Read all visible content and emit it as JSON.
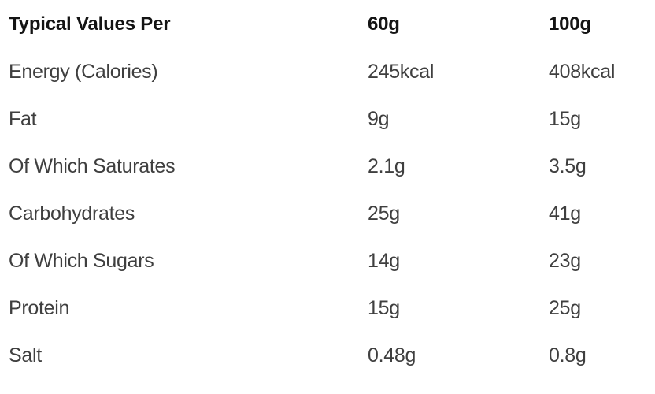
{
  "chart_data": {
    "type": "table",
    "title": "Typical Values Per",
    "columns": [
      "Typical Values Per",
      "60g",
      "100g"
    ],
    "rows": [
      [
        "Energy (Calories)",
        "245kcal",
        "408kcal"
      ],
      [
        "Fat",
        "9g",
        "15g"
      ],
      [
        "Of Which Saturates",
        "2.1g",
        "3.5g"
      ],
      [
        "Carbohydrates",
        "25g",
        "41g"
      ],
      [
        "Of Which Sugars",
        "14g",
        "23g"
      ],
      [
        "Protein",
        "15g",
        "25g"
      ],
      [
        "Salt",
        "0.48g",
        "0.8g"
      ]
    ],
    "layout_hints": {
      "grid": false,
      "borders": false,
      "header_bold": true
    }
  },
  "colors": {
    "background": "#ffffff",
    "header_text": "#141414",
    "body_text": "#3f3f3f"
  }
}
